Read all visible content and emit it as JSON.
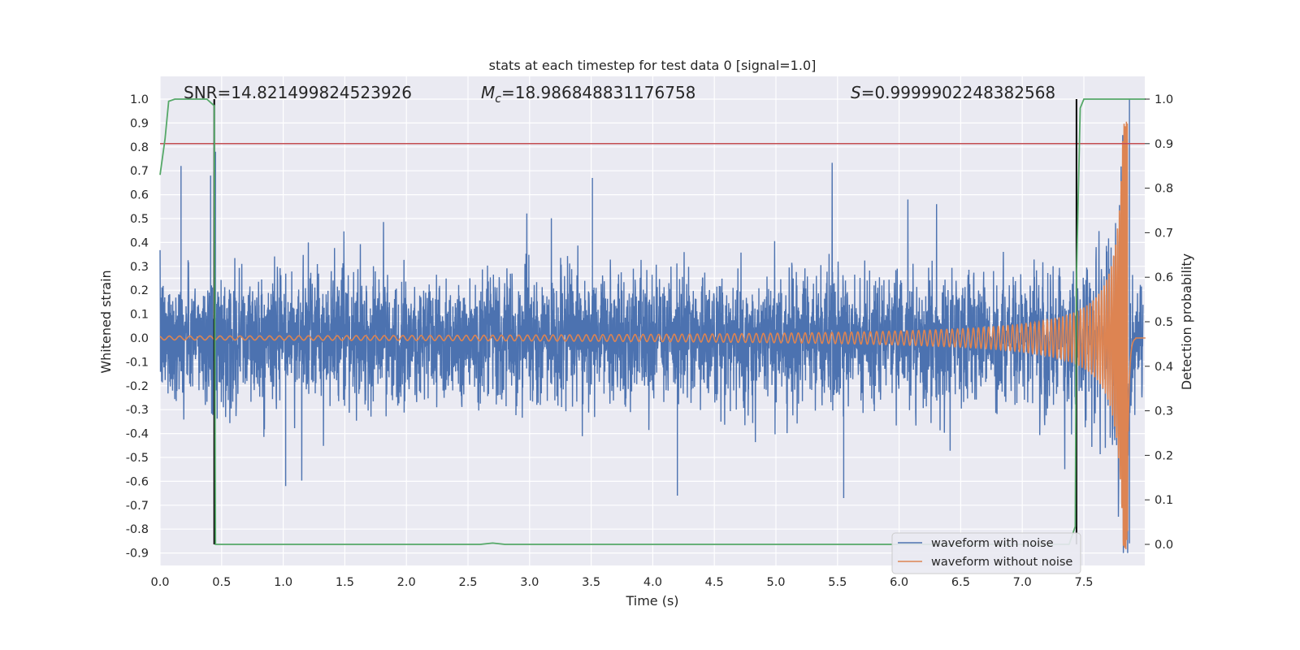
{
  "chart_data": {
    "type": "line",
    "title": "stats at each timestep for test data 0 [signal=1.0]",
    "xlabel": "Time (s)",
    "ylabel": "Whitened strain",
    "y2label": "Detection probability",
    "xlim": [
      0.0,
      8.0
    ],
    "ylim": [
      -0.95,
      1.05
    ],
    "y2lim": [
      -0.05,
      1.05
    ],
    "x_ticks": [
      "0.0",
      "0.5",
      "1.0",
      "1.5",
      "2.0",
      "2.5",
      "3.0",
      "3.5",
      "4.0",
      "4.5",
      "5.0",
      "5.5",
      "6.0",
      "6.5",
      "7.0",
      "7.5"
    ],
    "y_ticks": [
      "1.0",
      "0.9",
      "0.8",
      "0.7",
      "0.6",
      "0.5",
      "0.4",
      "0.3",
      "0.2",
      "0.1",
      "0.0",
      "-0.1",
      "-0.2",
      "-0.3",
      "-0.4",
      "-0.5",
      "-0.6",
      "-0.7",
      "-0.8",
      "-0.9"
    ],
    "y2_ticks": [
      "1.0",
      "0.9",
      "0.8",
      "0.7",
      "0.6",
      "0.5",
      "0.4",
      "0.3",
      "0.2",
      "0.1",
      "0.0"
    ],
    "grid": true,
    "legend_position": "lower-right",
    "annotations": {
      "snr": "SNR=14.821499824523926",
      "mc": "=18.986848831176758",
      "mc_symbol": "M",
      "mc_sub": "c",
      "s": "=0.9999902248382568",
      "s_symbol": "S"
    },
    "series": [
      {
        "name": "waveform with noise",
        "color": "#4c72b0",
        "noise_std": 0.13,
        "peaks": [
          {
            "x": 0.17,
            "y": 0.72
          },
          {
            "x": 0.41,
            "y": 0.68
          },
          {
            "x": 0.45,
            "y": 0.78
          },
          {
            "x": 3.51,
            "y": 0.67
          },
          {
            "x": 5.55,
            "y": -0.67
          },
          {
            "x": 4.2,
            "y": -0.66
          },
          {
            "x": 1.02,
            "y": -0.62
          },
          {
            "x": 7.87,
            "y": 1.0
          },
          {
            "x": 7.87,
            "y": -0.86
          }
        ]
      },
      {
        "name": "waveform without noise",
        "color": "#dd8452",
        "chirp": {
          "start_amplitude": 0.008,
          "end_amplitude": 0.92,
          "start_freq_hz": 12,
          "end_freq_hz": 110,
          "merger_time": 7.86,
          "end_time": 7.92
        }
      }
    ],
    "detection_probability": {
      "color": "#55a868",
      "points": [
        [
          0.0,
          0.83
        ],
        [
          0.04,
          0.91
        ],
        [
          0.07,
          0.995
        ],
        [
          0.12,
          1.0
        ],
        [
          0.38,
          1.0
        ],
        [
          0.44,
          0.985
        ],
        [
          0.45,
          0.0
        ],
        [
          0.5,
          0.0
        ],
        [
          2.6,
          0.0
        ],
        [
          2.7,
          0.003
        ],
        [
          2.8,
          0.0
        ],
        [
          7.38,
          0.0
        ],
        [
          7.43,
          0.04
        ],
        [
          7.44,
          0.6
        ],
        [
          7.47,
          0.98
        ],
        [
          7.5,
          1.0
        ],
        [
          8.0,
          1.0
        ]
      ]
    },
    "threshold": {
      "value": 0.9,
      "color": "#c44e52"
    },
    "vertical_markers": {
      "x": [
        0.44,
        7.44
      ],
      "color": "#000000"
    },
    "white_hlines": [
      0.25,
      0.07,
      -0.12
    ]
  }
}
